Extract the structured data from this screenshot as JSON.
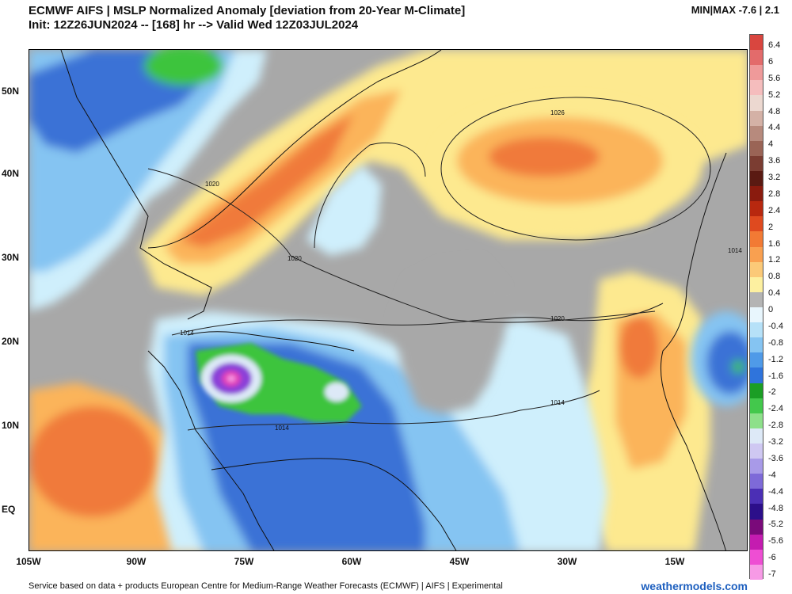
{
  "header": {
    "title_line1": "ECMWF AIFS | MSLP Normalized Anomaly [deviation from 20-Year M-Climate]",
    "title_line2": "Init: 12Z26JUN2024 -- [168] hr --> Valid Wed 12Z03JUL2024",
    "minmax": "MIN|MAX -7.6 | 2.1"
  },
  "map": {
    "lat_labels": [
      "50N",
      "40N",
      "30N",
      "20N",
      "10N",
      "EQ"
    ],
    "lon_labels": [
      "105W",
      "90W",
      "75W",
      "60W",
      "45W",
      "30W",
      "15W"
    ],
    "isobar_labels": [
      "1026",
      "1020",
      "1020",
      "1020",
      "1014",
      "1014",
      "1014",
      "1014"
    ],
    "colors": {
      "neutral": "#a8a8a8",
      "positive_light": "#fde98f",
      "positive_mid": "#fbb45a",
      "positive_strong": "#f07a3a",
      "negative_light": "#cfeffc",
      "negative_mid": "#74b9f0",
      "negative_strong": "#3b72d6",
      "negative_green": "#3ec43e",
      "negative_violet": "#8c3fd8",
      "negative_magenta": "#e23fb8"
    }
  },
  "colorbar": {
    "labels": [
      "6.4",
      "6",
      "5.6",
      "5.2",
      "4.8",
      "4.4",
      "4",
      "3.6",
      "3.2",
      "2.8",
      "2.4",
      "2",
      "1.6",
      "1.2",
      "0.8",
      "0.4",
      "0",
      "-0.4",
      "-0.8",
      "-1.2",
      "-1.6",
      "-2",
      "-2.4",
      "-2.8",
      "-3.2",
      "-3.6",
      "-4",
      "-4.4",
      "-4.8",
      "-5.2",
      "-5.6",
      "-6",
      "-7"
    ],
    "colors": [
      "#d9463f",
      "#e36b6b",
      "#ef9a9a",
      "#f5bdbd",
      "#ecd8d0",
      "#d4b1a6",
      "#b78a7d",
      "#9a6456",
      "#7b3d32",
      "#5a1a12",
      "#8a1b0e",
      "#b8280f",
      "#df4a1f",
      "#f27a34",
      "#f9a050",
      "#fbc978",
      "#fdf0a0",
      "#b4b4b4",
      "#e8f6fd",
      "#b6e1f8",
      "#85c4f2",
      "#4f9ae8",
      "#2f74dc",
      "#1b9e25",
      "#43c84c",
      "#8de08a",
      "#dde9f7",
      "#cfc8f2",
      "#a89ae8",
      "#7e6ad8",
      "#4b2fb5",
      "#2c0f8a",
      "#7a0a7a",
      "#c41cb0",
      "#ee4ed3",
      "#f79ae6"
    ]
  },
  "footer": {
    "credit": "Service based on data + products European Centre for Medium-Range Weather Forecasts (ECMWF) | AIFS | Experimental",
    "site": "weathermodels.com"
  }
}
